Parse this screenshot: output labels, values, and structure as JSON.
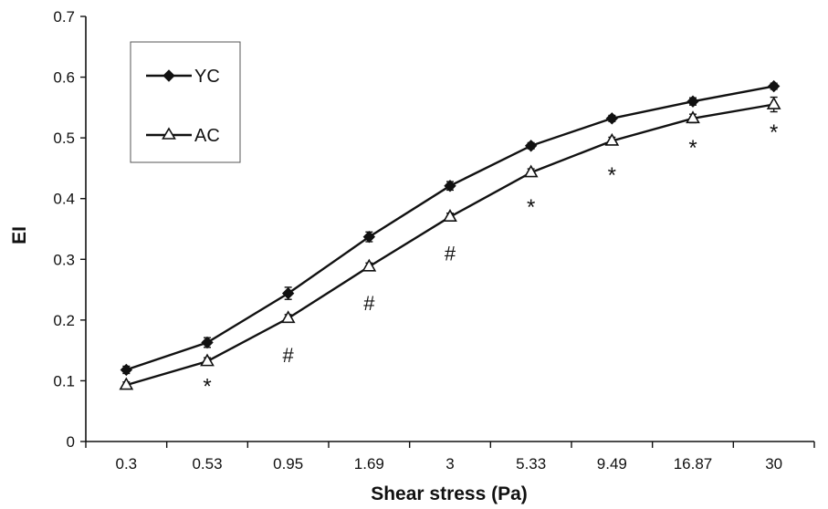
{
  "chart_data": {
    "type": "line",
    "title": "",
    "xlabel": "Shear stress (Pa)",
    "ylabel": "EI",
    "categories": [
      "0.3",
      "0.53",
      "0.95",
      "1.69",
      "3",
      "5.33",
      "9.49",
      "16.87",
      "30"
    ],
    "ylim": [
      0,
      0.7
    ],
    "yticks": [
      "0",
      "0.1",
      "0.2",
      "0.3",
      "0.4",
      "0.5",
      "0.6",
      "0.7"
    ],
    "ytick_values": [
      0,
      0.1,
      0.2,
      0.3,
      0.4,
      0.5,
      0.6,
      0.7
    ],
    "grid": false,
    "legend_position": "top-left",
    "series": [
      {
        "name": "YC",
        "marker": "filled-diamond",
        "values": [
          0.118,
          0.163,
          0.244,
          0.337,
          0.421,
          0.487,
          0.532,
          0.56,
          0.585
        ],
        "error": [
          0.006,
          0.008,
          0.01,
          0.008,
          0.007,
          0.005,
          0.005,
          0.006,
          0.005
        ]
      },
      {
        "name": "AC",
        "marker": "open-triangle",
        "values": [
          0.093,
          0.132,
          0.203,
          0.288,
          0.37,
          0.443,
          0.495,
          0.532,
          0.555
        ],
        "error": [
          0.005,
          0.006,
          0.006,
          0.006,
          0.006,
          0.006,
          0.006,
          0.007,
          0.012
        ]
      }
    ],
    "annotations": [
      {
        "category": "0.53",
        "y": 0.097,
        "text": "*"
      },
      {
        "category": "0.95",
        "y": 0.143,
        "text": "#"
      },
      {
        "category": "1.69",
        "y": 0.228,
        "text": "#"
      },
      {
        "category": "3",
        "y": 0.31,
        "text": "#"
      },
      {
        "category": "5.33",
        "y": 0.392,
        "text": "*"
      },
      {
        "category": "9.49",
        "y": 0.445,
        "text": "*"
      },
      {
        "category": "16.87",
        "y": 0.49,
        "text": "*"
      },
      {
        "category": "30",
        "y": 0.515,
        "text": "*"
      }
    ]
  },
  "colors": {
    "ink": "#111111",
    "background": "#ffffff",
    "legend_border": "#555555"
  }
}
